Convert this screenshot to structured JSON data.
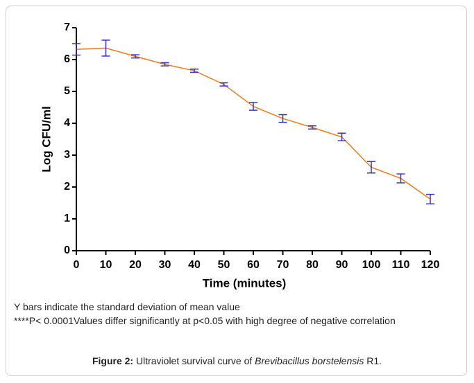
{
  "chart_data": {
    "type": "line",
    "x": [
      0,
      10,
      20,
      30,
      40,
      50,
      60,
      70,
      80,
      90,
      100,
      110,
      120
    ],
    "series": [
      {
        "name": "Log CFU/ml",
        "color": "#f07b1a",
        "values": [
          6.32,
          6.36,
          6.1,
          5.85,
          5.65,
          5.22,
          4.53,
          4.15,
          3.87,
          3.57,
          2.62,
          2.27,
          1.62
        ],
        "errors": [
          0.18,
          0.25,
          0.05,
          0.05,
          0.05,
          0.05,
          0.12,
          0.12,
          0.05,
          0.12,
          0.18,
          0.14,
          0.15
        ],
        "error_color": "#3333cc"
      }
    ],
    "xlabel": "Time (minutes)",
    "ylabel": "Log CFU/ml",
    "xlim": [
      0,
      120
    ],
    "xticks": [
      0,
      10,
      20,
      30,
      40,
      50,
      60,
      70,
      80,
      90,
      100,
      110,
      120
    ],
    "ylim": [
      0,
      7
    ],
    "yticks": [
      0,
      1,
      2,
      3,
      4,
      5,
      6,
      7
    ]
  },
  "notes": [
    "Y bars indicate the standard deviation of mean value",
    "****P< 0.0001Values differ significantly at p<0.05 with high degree of negative correlation"
  ],
  "caption": {
    "label": "Figure 2:",
    "text": "Ultraviolet survival curve of",
    "species": "Brevibacillus borstelensis",
    "strain": "R1."
  }
}
